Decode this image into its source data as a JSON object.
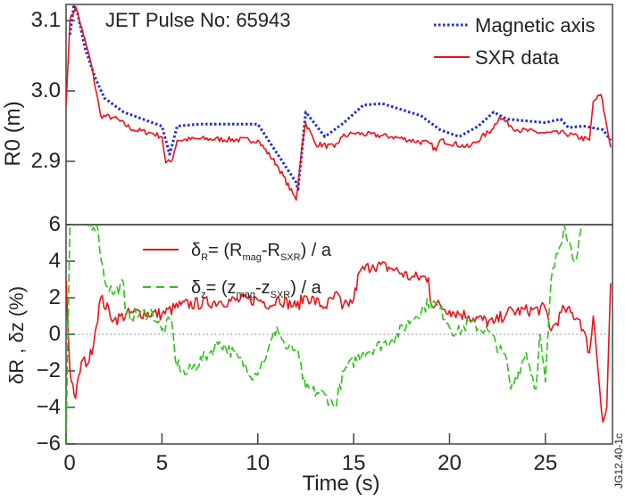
{
  "chart_data": [
    {
      "type": "line",
      "annotation": "JET Pulse No: 65943",
      "ylabel": "R0 (m)",
      "ylabel_main": "R",
      "ylabel_sub": "0",
      "ylabel_unit": " (m)",
      "xlim": [
        0,
        28.5
      ],
      "ylim": [
        2.81,
        3.123
      ],
      "yticks": [
        2.9,
        3.0,
        3.1
      ],
      "ytick_labels": [
        "2.9",
        "3.0",
        "3.1"
      ],
      "grid": false,
      "legend_position": "top-right",
      "series": [
        {
          "name": "Magnetic axis",
          "color": "#1f2bd6",
          "style": "dotted",
          "x": [
            0.2,
            0.4,
            0.6,
            1.0,
            1.5,
            2.0,
            3,
            4,
            5,
            5.2,
            5.4,
            5.8,
            7,
            10,
            12,
            12.1,
            12.5,
            13.5,
            14.5,
            15.5,
            16.5,
            18.5,
            19.5,
            20.5,
            21.5,
            22.3,
            23,
            25,
            25.8,
            26.2,
            27,
            28,
            28.4
          ],
          "y": [
            3.08,
            3.12,
            3.11,
            3.06,
            3.02,
            2.99,
            2.97,
            2.96,
            2.95,
            2.93,
            2.91,
            2.95,
            2.953,
            2.953,
            2.87,
            2.86,
            2.97,
            2.935,
            2.955,
            2.98,
            2.982,
            2.965,
            2.945,
            2.935,
            2.95,
            2.97,
            2.96,
            2.955,
            2.96,
            2.948,
            2.95,
            2.945,
            2.93
          ]
        },
        {
          "name": "SXR data",
          "color": "#e8141a",
          "style": "solid",
          "x": [
            0,
            0.2,
            0.5,
            0.9,
            1.3,
            1.8,
            2.5,
            3.5,
            4.5,
            5.0,
            5.2,
            5.5,
            5.8,
            7,
            10,
            11,
            12.0,
            12.3,
            12.5,
            13,
            14,
            14.4,
            15,
            17,
            19,
            19.3,
            19.5,
            21,
            22.2,
            22.6,
            23.5,
            25,
            26,
            27.3,
            27.5,
            27.9,
            28.2,
            28.4
          ],
          "y": [
            2.98,
            3.1,
            3.12,
            3.08,
            3.04,
            2.965,
            2.962,
            2.945,
            2.94,
            2.935,
            2.898,
            2.9,
            2.93,
            2.932,
            2.93,
            2.895,
            2.845,
            2.92,
            2.955,
            2.925,
            2.92,
            2.935,
            2.94,
            2.935,
            2.925,
            2.915,
            2.93,
            2.92,
            2.945,
            2.963,
            2.945,
            2.94,
            2.94,
            2.93,
            2.985,
            2.995,
            2.95,
            2.92
          ]
        }
      ]
    },
    {
      "type": "line",
      "xlabel": "Time (s)",
      "ylabel": "δR , δz (%)",
      "xlim": [
        0,
        28.5
      ],
      "ylim": [
        -6,
        6
      ],
      "xticks": [
        0,
        5,
        10,
        15,
        20,
        25
      ],
      "xtick_labels": [
        "0",
        "5",
        "10",
        "15",
        "20",
        "25"
      ],
      "yticks": [
        -6,
        -4,
        -2,
        0,
        2,
        4,
        6
      ],
      "ytick_labels": [
        "−6",
        "−4",
        "−2",
        "0",
        "2",
        "4",
        "6"
      ],
      "reference_line": 0,
      "grid": false,
      "legend_position": "top-left",
      "series": [
        {
          "name": "δR= (Rmag-RSXR) / a",
          "legend": {
            "sym": "δ",
            "sub": "R",
            "eq": "= (R",
            "s1": "mag",
            "mid": "-R",
            "s2": "SXR",
            "end": ") / a"
          },
          "color": "#e8141a",
          "style": "solid",
          "x": [
            0,
            0.2,
            0.5,
            0.8,
            1.2,
            1.5,
            1.8,
            2.5,
            3.5,
            5,
            6,
            8,
            10,
            10.8,
            11,
            12,
            12.5,
            13.5,
            14.2,
            14.4,
            15,
            15.3,
            16,
            17,
            18,
            18.9,
            19,
            20,
            21,
            22.3,
            23,
            25,
            25.3,
            26,
            26.8,
            27.3,
            27.5,
            28,
            28.2,
            28.4
          ],
          "y": [
            3,
            -2,
            -3.5,
            -1.5,
            -1.5,
            0,
            2,
            0.8,
            1.2,
            1.1,
            1.6,
            1.8,
            1.9,
            1.6,
            2.0,
            1.5,
            2.1,
            1.5,
            2.2,
            1.4,
            1.9,
            3.4,
            3.8,
            3.6,
            3.1,
            3.1,
            1.8,
            1.3,
            1.0,
            0.6,
            1.2,
            1.4,
            0.2,
            1.4,
            0.8,
            -1,
            1,
            -4.8,
            -4,
            2.8
          ]
        },
        {
          "name": "δz= (zmag-zSXR) / a",
          "legend": {
            "sym": "δ",
            "sub": "z",
            "eq": "= (z",
            "s1": "mag",
            "mid": "-z",
            "s2": "SXR",
            "end": ") / a"
          },
          "color": "#2ec21a",
          "style": "dashed",
          "x": [
            0,
            0.2,
            0.5,
            1.6,
            2,
            2.5,
            3,
            3.1,
            4.5,
            5,
            5.5,
            5.7,
            6.2,
            7.5,
            8,
            9,
            9.8,
            10.5,
            11,
            11.5,
            12,
            12.5,
            13.5,
            14,
            14.5,
            15.5,
            17,
            18,
            19,
            19.5,
            20.3,
            21,
            22,
            23,
            23.2,
            24,
            24.5,
            24.7,
            25.0,
            25.3,
            26,
            26.5,
            27
          ],
          "y": [
            -6,
            6,
            6,
            6,
            3,
            2.2,
            2.8,
            1,
            1.2,
            0.2,
            0.8,
            -1.4,
            -2.2,
            -1.0,
            -0.4,
            -1.3,
            -2.3,
            -1,
            0.4,
            -0.8,
            -0.8,
            -3,
            -3.3,
            -4,
            -2,
            -1,
            -0.3,
            0.8,
            1.8,
            1.4,
            0,
            0.6,
            0.2,
            -1.5,
            -3,
            -1,
            -3,
            0,
            -2.6,
            3,
            6,
            4,
            6
          ]
        }
      ]
    }
  ],
  "figure_id": "JG12.40-1c"
}
